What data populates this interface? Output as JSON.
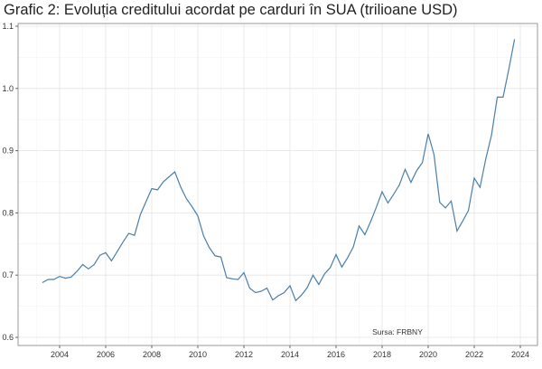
{
  "chart_data": {
    "type": "line",
    "title": "Grafic 2: Evoluția creditului acordat pe carduri în SUA (trilioane USD)",
    "xlabel": "",
    "ylabel": "",
    "annotation": "Sursa: FRBNY",
    "xlim": [
      2002.2,
      2024.7
    ],
    "ylim": [
      0.6,
      1.1
    ],
    "x_ticks": [
      "2004",
      "2006",
      "2008",
      "2010",
      "2012",
      "2014",
      "2016",
      "2018",
      "2020",
      "2022",
      "2024"
    ],
    "y_ticks": [
      "0.6",
      "0.7",
      "0.8",
      "0.9",
      "1.0",
      "1.1"
    ],
    "grid": true,
    "line_color": "#4a7fab",
    "series": [
      {
        "x": [
          2003.25,
          2003.5,
          2003.75,
          2004.0,
          2004.25,
          2004.5,
          2004.75,
          2005.0,
          2005.25,
          2005.5,
          2005.75,
          2006.0,
          2006.25,
          2006.5,
          2006.75,
          2007.0,
          2007.25,
          2007.5,
          2007.75,
          2008.0,
          2008.25,
          2008.5,
          2008.75,
          2009.0,
          2009.25,
          2009.5,
          2009.75,
          2010.0,
          2010.25,
          2010.5,
          2010.75,
          2011.0,
          2011.25,
          2011.5,
          2011.75,
          2012.0,
          2012.25,
          2012.5,
          2012.75,
          2013.0,
          2013.25,
          2013.5,
          2013.75,
          2014.0,
          2014.25,
          2014.5,
          2014.75,
          2015.0,
          2015.25,
          2015.5,
          2015.75,
          2016.0,
          2016.25,
          2016.5,
          2016.75,
          2017.0,
          2017.25,
          2017.5,
          2017.75,
          2018.0,
          2018.25,
          2018.5,
          2018.75,
          2019.0,
          2019.25,
          2019.5,
          2019.75,
          2020.0,
          2020.25,
          2020.5,
          2020.75,
          2021.0,
          2021.25,
          2021.5,
          2021.75,
          2022.0,
          2022.25,
          2022.5,
          2022.75,
          2023.0,
          2023.25,
          2023.5,
          2023.75
        ],
        "values": [
          0.688,
          0.693,
          0.693,
          0.698,
          0.695,
          0.697,
          0.706,
          0.717,
          0.71,
          0.717,
          0.732,
          0.736,
          0.723,
          0.738,
          0.753,
          0.767,
          0.764,
          0.797,
          0.818,
          0.839,
          0.837,
          0.85,
          0.858,
          0.866,
          0.842,
          0.823,
          0.81,
          0.795,
          0.763,
          0.744,
          0.731,
          0.729,
          0.696,
          0.694,
          0.693,
          0.704,
          0.679,
          0.672,
          0.674,
          0.679,
          0.66,
          0.667,
          0.672,
          0.683,
          0.659,
          0.668,
          0.68,
          0.7,
          0.685,
          0.702,
          0.712,
          0.733,
          0.713,
          0.728,
          0.745,
          0.779,
          0.765,
          0.786,
          0.809,
          0.834,
          0.816,
          0.83,
          0.845,
          0.87,
          0.849,
          0.868,
          0.881,
          0.927,
          0.894,
          0.817,
          0.808,
          0.819,
          0.771,
          0.787,
          0.804,
          0.856,
          0.841,
          0.887,
          0.925,
          0.986,
          0.986,
          1.031,
          1.079
        ]
      }
    ]
  }
}
